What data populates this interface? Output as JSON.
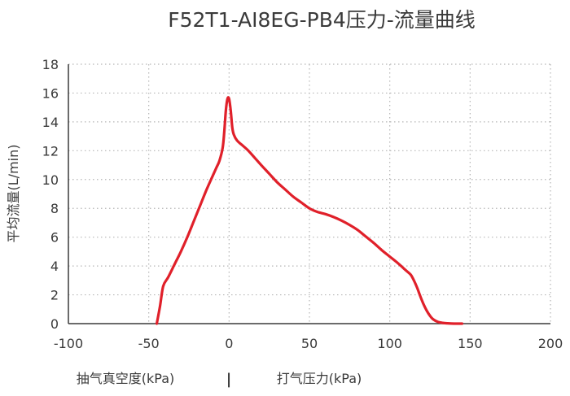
{
  "chart_data": {
    "type": "line",
    "title": "F52T1-AI8EG-PB4压力-流量曲线",
    "ylabel": "平均流量(L/min)",
    "xlabel_left": "抽气真空度(kPa)",
    "xlabel_separator": "|",
    "xlabel_right": "打气压力(kPa)",
    "xlim": [
      -100,
      200
    ],
    "ylim": [
      0,
      18
    ],
    "x_ticks": [
      "-100",
      "-50",
      "0",
      "50",
      "100",
      "150",
      "200"
    ],
    "y_ticks": [
      "0",
      "2",
      "4",
      "6",
      "8",
      "10",
      "12",
      "14",
      "16",
      "18"
    ],
    "grid": true,
    "line_color": "#e0202a",
    "series": [
      {
        "x": [
          -45,
          -43,
          -41,
          -38,
          -34,
          -30,
          -26,
          -22,
          -18,
          -14,
          -10,
          -8,
          -6,
          -4,
          -3,
          -2,
          -1,
          0,
          1,
          2,
          3,
          5,
          8,
          12,
          16,
          20,
          25,
          30,
          35,
          40,
          45,
          50,
          55,
          60,
          65,
          70,
          75,
          80,
          85,
          90,
          95,
          100,
          105,
          110,
          113,
          115,
          117,
          119,
          121,
          123,
          125,
          127,
          130,
          133,
          136,
          140,
          145
        ],
        "y": [
          0,
          1.2,
          2.6,
          3.2,
          4.1,
          5.0,
          6.0,
          7.1,
          8.2,
          9.3,
          10.3,
          10.8,
          11.3,
          12.2,
          13.3,
          14.8,
          15.6,
          15.6,
          14.8,
          13.6,
          13.1,
          12.7,
          12.4,
          12.0,
          11.5,
          11.0,
          10.4,
          9.8,
          9.3,
          8.8,
          8.4,
          8.0,
          7.75,
          7.6,
          7.4,
          7.15,
          6.85,
          6.5,
          6.05,
          5.6,
          5.1,
          4.65,
          4.2,
          3.7,
          3.4,
          3.0,
          2.5,
          1.9,
          1.35,
          0.9,
          0.55,
          0.3,
          0.12,
          0.05,
          0.02,
          0.0,
          0.0
        ]
      }
    ]
  }
}
